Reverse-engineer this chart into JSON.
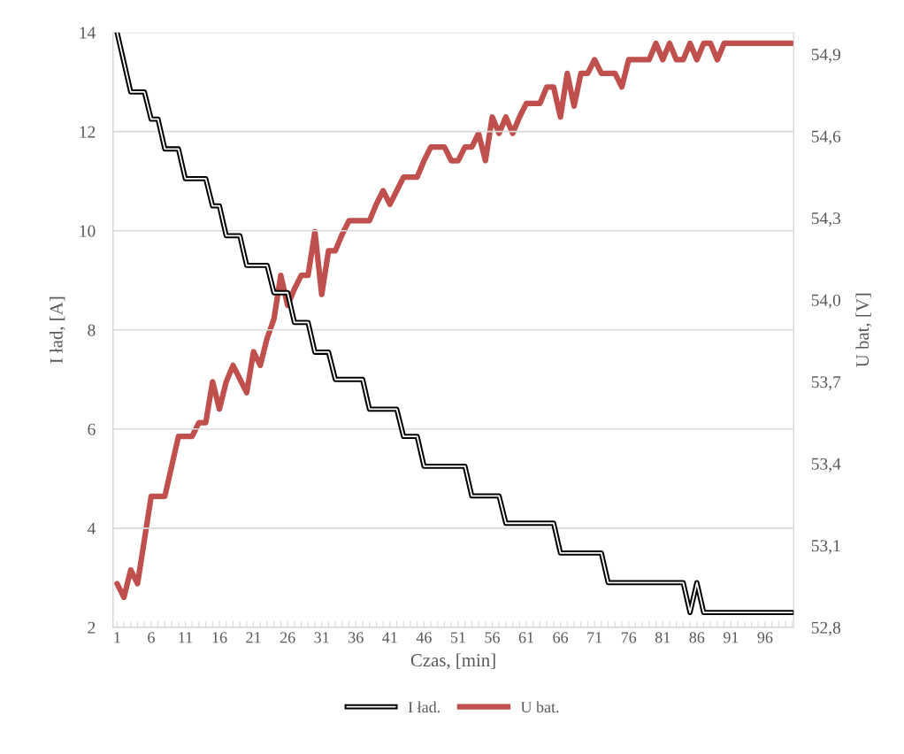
{
  "chart_data": {
    "type": "line",
    "xlabel": "Czas, [min]",
    "ylabel": "I ład, [A]",
    "y2label": "U bat, [V]",
    "categories": [
      "1",
      null,
      null,
      null,
      null,
      "6",
      null,
      null,
      null,
      null,
      "11",
      null,
      null,
      null,
      null,
      "16",
      null,
      null,
      null,
      null,
      "21",
      null,
      null,
      null,
      null,
      "26",
      null,
      null,
      null,
      null,
      "31",
      null,
      null,
      null,
      null,
      "36",
      null,
      null,
      null,
      null,
      "41",
      null,
      null,
      null,
      null,
      "46",
      null,
      null,
      null,
      null,
      "51",
      null,
      null,
      null,
      null,
      "56",
      null,
      null,
      null,
      null,
      "61",
      null,
      null,
      null,
      null,
      "66",
      null,
      null,
      null,
      null,
      "71",
      null,
      null,
      null,
      null,
      "76",
      null,
      null,
      null,
      null,
      "81",
      null,
      null,
      null,
      null,
      "86",
      null,
      null,
      null,
      null,
      "91",
      null,
      null,
      null,
      null,
      "96",
      null,
      null,
      null,
      null
    ],
    "series": [
      {
        "name": "I ład.",
        "color": "#000000",
        "values": [
          14.0,
          13.4,
          12.8,
          12.8,
          12.8,
          12.25,
          12.25,
          11.65,
          11.65,
          11.65,
          11.05,
          11.05,
          11.05,
          11.05,
          10.5,
          10.5,
          9.9,
          9.9,
          9.9,
          9.3,
          9.3,
          9.3,
          9.3,
          8.75,
          8.75,
          8.75,
          8.15,
          8.15,
          8.15,
          7.55,
          7.55,
          7.55,
          7.0,
          7.0,
          7.0,
          7.0,
          7.0,
          6.4,
          6.4,
          6.4,
          6.4,
          6.4,
          5.85,
          5.85,
          5.85,
          5.25,
          5.25,
          5.25,
          5.25,
          5.25,
          5.25,
          5.25,
          4.65,
          4.65,
          4.65,
          4.65,
          4.65,
          4.1,
          4.1,
          4.1,
          4.1,
          4.1,
          4.1,
          4.1,
          4.1,
          3.5,
          3.5,
          3.5,
          3.5,
          3.5,
          3.5,
          3.5,
          2.9,
          2.9,
          2.9,
          2.9,
          2.9,
          2.9,
          2.9,
          2.9,
          2.9,
          2.9,
          2.9,
          2.9,
          2.3,
          2.9,
          2.3,
          2.3,
          2.3,
          2.3,
          2.3,
          2.3,
          2.3,
          2.3,
          2.3,
          2.3,
          2.3,
          2.3,
          2.3,
          2.3
        ]
      },
      {
        "name": "U bat.",
        "color": "#c0504d",
        "axis": "y2",
        "values": [
          52.96,
          52.91,
          53.01,
          52.96,
          53.12,
          53.28,
          53.28,
          53.28,
          53.39,
          53.5,
          53.5,
          53.5,
          53.55,
          53.55,
          53.7,
          53.6,
          53.7,
          53.76,
          53.71,
          53.66,
          53.81,
          53.76,
          53.86,
          53.93,
          54.09,
          53.98,
          54.04,
          54.09,
          54.09,
          54.25,
          54.02,
          54.18,
          54.18,
          54.24,
          54.29,
          54.29,
          54.29,
          54.29,
          54.35,
          54.4,
          54.35,
          54.4,
          54.45,
          54.45,
          54.45,
          54.51,
          54.56,
          54.56,
          54.56,
          54.51,
          54.51,
          54.56,
          54.56,
          54.61,
          54.51,
          54.67,
          54.61,
          54.67,
          54.61,
          54.67,
          54.72,
          54.72,
          54.72,
          54.78,
          54.78,
          54.67,
          54.83,
          54.71,
          54.83,
          54.83,
          54.88,
          54.83,
          54.83,
          54.83,
          54.78,
          54.88,
          54.88,
          54.88,
          54.88,
          54.94,
          54.88,
          54.94,
          54.88,
          54.88,
          54.94,
          54.88,
          54.94,
          54.94,
          54.88,
          54.94,
          54.94,
          54.94,
          54.94,
          54.94,
          54.94,
          54.94,
          54.94,
          54.94,
          54.94,
          54.94
        ]
      }
    ],
    "ylim": [
      2,
      14
    ],
    "yticks": [
      2,
      4,
      6,
      8,
      10,
      12,
      14
    ],
    "y2lim": [
      52.8,
      54.98
    ],
    "y2ticks": [
      {
        "value": 52.8,
        "label": "52,8"
      },
      {
        "value": 53.1,
        "label": "53,1"
      },
      {
        "value": 53.4,
        "label": "53,4"
      },
      {
        "value": 53.7,
        "label": "53,7"
      },
      {
        "value": 54.0,
        "label": "54,0"
      },
      {
        "value": 54.3,
        "label": "54,3"
      },
      {
        "value": 54.6,
        "label": "54,6"
      },
      {
        "value": 54.9,
        "label": "54,9"
      }
    ],
    "grid": "y",
    "legend": "bottom",
    "marker": "none",
    "line_style": "solid"
  }
}
